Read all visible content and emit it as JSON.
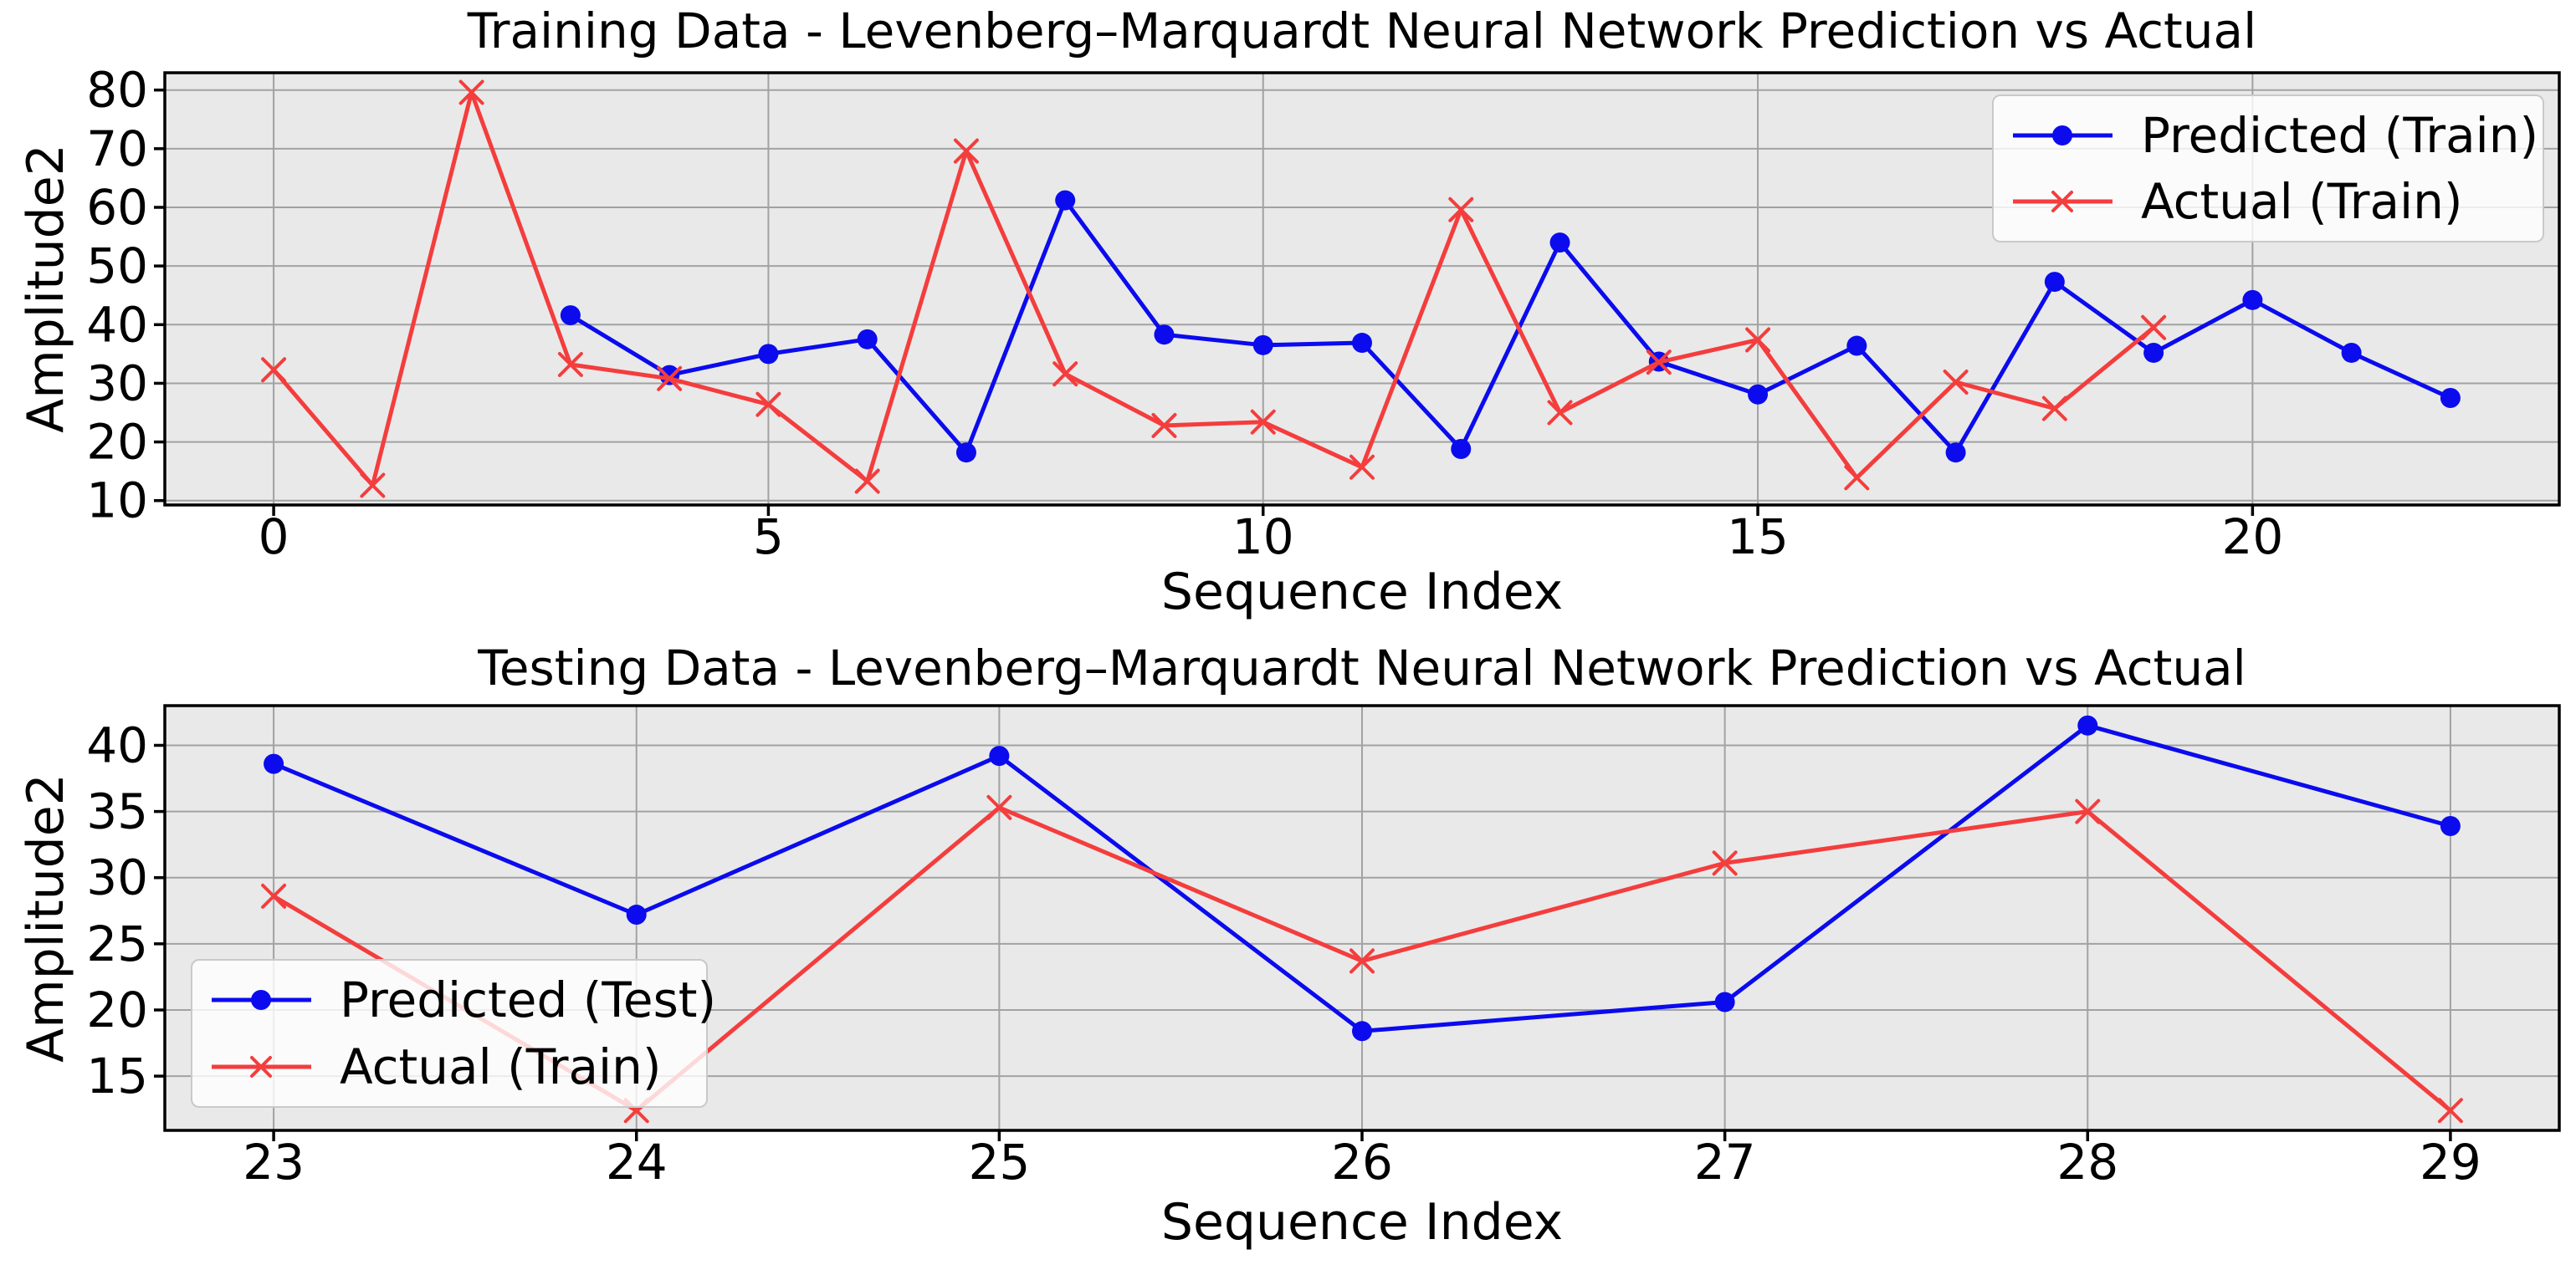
{
  "figure": {
    "background": "#ffffff"
  },
  "palette": {
    "predicted": "#0b0bee",
    "actual": "#f43d3d",
    "plot_bg": "#e9e9e9",
    "grid": "#a2a2a2",
    "spine": "#000000",
    "text": "#000000",
    "legend_bg": "rgba(255,255,255,0.8)",
    "legend_edge": "#c9c9c9"
  },
  "chart_data": [
    {
      "type": "line",
      "title": "Training Data - Levenberg–Marquardt Neural Network Prediction vs Actual",
      "xlabel": "Sequence Index",
      "ylabel": "Amplitude2",
      "xlim": [
        -1.1,
        23.1
      ],
      "ylim": [
        9.25,
        82.95
      ],
      "xticks": [
        0,
        5,
        10,
        15,
        20
      ],
      "yticks": [
        10,
        20,
        30,
        40,
        50,
        60,
        70,
        80
      ],
      "grid": true,
      "legend": {
        "location": "upper right",
        "entries": [
          {
            "label": "Predicted (Train)",
            "series": 0
          },
          {
            "label": "Actual (Train)",
            "series": 1
          }
        ]
      },
      "series": [
        {
          "name": "Predicted (Train)",
          "color_key": "predicted",
          "marker": "circle",
          "x": [
            3,
            4,
            5,
            6,
            7,
            8,
            9,
            10,
            11,
            12,
            13,
            14,
            15,
            16,
            17,
            18,
            19,
            20,
            21,
            22
          ],
          "y": [
            41.6,
            31.4,
            35.0,
            37.5,
            18.2,
            61.2,
            38.3,
            36.5,
            36.9,
            18.8,
            54.0,
            33.7,
            28.1,
            36.4,
            18.2,
            47.3,
            35.2,
            44.2,
            35.2,
            27.5
          ]
        },
        {
          "name": "Actual (Train)",
          "color_key": "actual",
          "marker": "x",
          "x": [
            0,
            1,
            2,
            3,
            4,
            5,
            6,
            7,
            8,
            9,
            10,
            11,
            12,
            13,
            14,
            15,
            16,
            17,
            18,
            19
          ],
          "y": [
            32.3,
            12.6,
            79.6,
            33.2,
            30.8,
            26.4,
            13.3,
            69.6,
            31.6,
            22.8,
            23.4,
            15.7,
            59.6,
            25.0,
            33.6,
            37.4,
            13.9,
            30.2,
            25.7,
            39.5
          ]
        }
      ]
    },
    {
      "type": "line",
      "title": "Testing Data - Levenberg–Marquardt Neural Network Prediction vs Actual",
      "xlabel": "Sequence Index",
      "ylabel": "Amplitude2",
      "xlim": [
        22.7,
        29.3
      ],
      "ylim": [
        10.9,
        43.0
      ],
      "xticks": [
        23,
        24,
        25,
        26,
        27,
        28,
        29
      ],
      "yticks": [
        15,
        20,
        25,
        30,
        35,
        40
      ],
      "grid": true,
      "legend": {
        "location": "lower left",
        "entries": [
          {
            "label": "Predicted (Test)",
            "series": 0
          },
          {
            "label": "Actual (Train)",
            "series": 1
          }
        ]
      },
      "series": [
        {
          "name": "Predicted (Test)",
          "color_key": "predicted",
          "marker": "circle",
          "x": [
            23,
            24,
            25,
            26,
            27,
            28,
            29
          ],
          "y": [
            38.6,
            27.2,
            39.2,
            18.4,
            20.6,
            41.5,
            33.9
          ]
        },
        {
          "name": "Actual (Train)",
          "color_key": "actual",
          "marker": "x",
          "x": [
            23,
            24,
            25,
            26,
            27,
            28,
            29
          ],
          "y": [
            28.6,
            12.4,
            35.3,
            23.7,
            31.1,
            35.0,
            12.4
          ]
        }
      ]
    }
  ]
}
